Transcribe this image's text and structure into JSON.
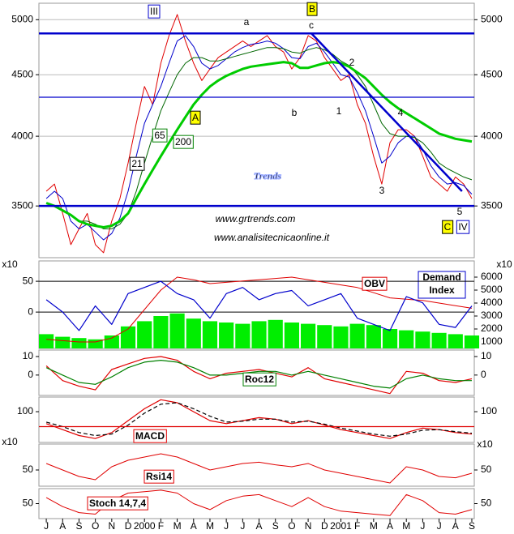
{
  "chart_data": [
    {
      "type": "line",
      "log": true,
      "grid": true,
      "mirror_ticks": true,
      "xlim": [
        -0.45,
        26.15
      ],
      "ylim": [
        3170,
        5160
      ],
      "yticks": [
        3500,
        4000,
        4500,
        5000
      ],
      "hlines": [
        4870,
        4310,
        3500
      ],
      "hline_color": "#0000cc",
      "trendline": {
        "x": [
          16.2,
          25.4
        ],
        "y": [
          4870,
          3600
        ],
        "color": "#0000cc"
      },
      "x": [
        0,
        0.5,
        1,
        1.5,
        2,
        2.5,
        3,
        3.5,
        4,
        4.5,
        5,
        5.5,
        6,
        6.5,
        7,
        7.5,
        8,
        8.5,
        9,
        9.5,
        10,
        10.5,
        11,
        11.5,
        12,
        12.5,
        13,
        13.5,
        14,
        14.5,
        15,
        15.5,
        16,
        16.5,
        17,
        17.5,
        18,
        18.5,
        19,
        19.5,
        20,
        20.5,
        21,
        21.5,
        22,
        22.5,
        23,
        23.5,
        24,
        24.5,
        25,
        25.5,
        26
      ],
      "series": [
        {
          "color": "#e00000",
          "values": [
            3600,
            3650,
            3450,
            3250,
            3350,
            3450,
            3250,
            3200,
            3400,
            3550,
            3800,
            4100,
            4400,
            4250,
            4600,
            4850,
            5050,
            4800,
            4600,
            4450,
            4550,
            4650,
            4700,
            4750,
            4800,
            4750,
            4800,
            4850,
            4750,
            4700,
            4550,
            4650,
            4850,
            4800,
            4650,
            4550,
            4450,
            4500,
            4250,
            4100,
            3850,
            3650,
            3950,
            4050,
            4050,
            4000,
            3850,
            3700,
            3650,
            3600,
            3700,
            3650,
            3550
          ]
        },
        {
          "color": "#0000cc",
          "values": [
            3550,
            3600,
            3550,
            3400,
            3350,
            3380,
            3330,
            3280,
            3320,
            3420,
            3600,
            3850,
            4100,
            4250,
            4400,
            4600,
            4800,
            4850,
            4750,
            4600,
            4550,
            4580,
            4640,
            4700,
            4740,
            4770,
            4780,
            4800,
            4780,
            4730,
            4650,
            4640,
            4750,
            4780,
            4700,
            4600,
            4500,
            4480,
            4350,
            4200,
            4000,
            3800,
            3850,
            3950,
            4000,
            4000,
            3900,
            3780,
            3700,
            3650,
            3660,
            3640,
            3580
          ]
        },
        {
          "color": "#006600",
          "values": [
            null,
            null,
            null,
            null,
            3400,
            3400,
            3380,
            3350,
            3350,
            3380,
            3450,
            3600,
            3800,
            4000,
            4200,
            4350,
            4500,
            4600,
            4650,
            4650,
            4620,
            4620,
            4640,
            4660,
            4680,
            4700,
            4720,
            4740,
            4740,
            4730,
            4700,
            4690,
            4720,
            4740,
            4720,
            4680,
            4620,
            4580,
            4500,
            4400,
            4250,
            4100,
            4020,
            4000,
            4000,
            3990,
            3950,
            3880,
            3800,
            3760,
            3730,
            3700,
            3680
          ]
        },
        {
          "color": "#00cc00",
          "values": [
            3520,
            3500,
            3470,
            3440,
            3400,
            3380,
            3370,
            3360,
            3370,
            3400,
            3450,
            3550,
            3650,
            3750,
            3850,
            3950,
            4050,
            4150,
            4250,
            4330,
            4400,
            4450,
            4490,
            4520,
            4550,
            4570,
            4580,
            4590,
            4600,
            4610,
            4600,
            4560,
            4560,
            4580,
            4600,
            4610,
            4600,
            4570,
            4520,
            4470,
            4400,
            4330,
            4270,
            4220,
            4180,
            4140,
            4100,
            4060,
            4020,
            4000,
            3980,
            3970,
            3960
          ]
        }
      ],
      "annotations": [
        "III",
        "a",
        "B",
        "c",
        "2",
        "A",
        "b",
        "1",
        "4",
        "3",
        "5",
        "C",
        "IV",
        "21",
        "65",
        "200",
        "Trends",
        "www.grtrends.com",
        "www.analisitecnicaonline.it"
      ]
    },
    {
      "type": "line",
      "xlim": [
        -0.45,
        26.15
      ],
      "ylim": [
        -59,
        83
      ],
      "yticks": [
        50,
        0
      ],
      "grid": true,
      "y2lim": [
        500,
        7250
      ],
      "y2ticks": [
        6000,
        5000,
        4000,
        3000,
        2000,
        1000
      ],
      "units": "x10",
      "x": [
        0,
        1,
        2,
        3,
        4,
        5,
        6,
        7,
        8,
        9,
        10,
        11,
        12,
        13,
        14,
        15,
        16,
        17,
        18,
        19,
        20,
        21,
        22,
        23,
        24,
        25,
        26
      ],
      "series": [
        {
          "color": "#00ee00",
          "kind": "bar",
          "axis": "y2",
          "values": [
            1600,
            1400,
            1300,
            1200,
            1500,
            2200,
            2600,
            3000,
            3200,
            2800,
            2600,
            2500,
            2400,
            2600,
            2700,
            2500,
            2400,
            2300,
            2200,
            2400,
            2300,
            2000,
            1900,
            1800,
            1700,
            1600,
            1500
          ]
        },
        {
          "color": "#e00000",
          "axis": "y2",
          "values": [
            1200,
            1100,
            1000,
            1000,
            1300,
            2000,
            3500,
            5000,
            6000,
            5800,
            5500,
            5600,
            5700,
            5800,
            5900,
            6000,
            5800,
            5600,
            5400,
            5200,
            4800,
            4400,
            4300,
            4200,
            4000,
            3800,
            3600
          ]
        },
        {
          "color": "#0000cc",
          "values": [
            20,
            0,
            -30,
            10,
            -20,
            30,
            40,
            50,
            30,
            20,
            -10,
            30,
            40,
            20,
            30,
            35,
            10,
            20,
            30,
            -10,
            -20,
            -30,
            25,
            15,
            -20,
            -25,
            10
          ]
        }
      ],
      "annotations": [
        "OBV",
        "Demand",
        "Index"
      ]
    },
    {
      "type": "line",
      "xlim": [
        -0.45,
        26.15
      ],
      "ylim": [
        -11,
        13.5
      ],
      "yticks": [
        10,
        0
      ],
      "mirror_ticks": true,
      "x": [
        0,
        1,
        2,
        3,
        4,
        5,
        6,
        7,
        8,
        9,
        10,
        11,
        12,
        13,
        14,
        15,
        16,
        17,
        18,
        19,
        20,
        21,
        22,
        23,
        24,
        25,
        26
      ],
      "series": [
        {
          "color": "#e00000",
          "values": [
            5,
            -3,
            -6,
            -8,
            3,
            6,
            9,
            10,
            8,
            2,
            -2,
            1,
            2,
            3,
            1,
            -1,
            4,
            -2,
            -4,
            -6,
            -8,
            -10,
            2,
            1,
            -3,
            -4,
            -2
          ]
        },
        {
          "color": "#008000",
          "values": [
            4,
            0,
            -4,
            -5,
            -1,
            4,
            7,
            8,
            7,
            4,
            0,
            0,
            1,
            2,
            2,
            0,
            2,
            0,
            -2,
            -4,
            -6,
            -7,
            -2,
            0,
            -2,
            -3,
            -3
          ]
        }
      ],
      "annotations": [
        "Roc12"
      ]
    },
    {
      "type": "line",
      "xlim": [
        -0.45,
        26.15
      ],
      "ylim": [
        -3,
        149
      ],
      "yticks": [
        100
      ],
      "mirror_ticks": true,
      "hlines": [
        50
      ],
      "hline_color": "#e00000",
      "x": [
        0,
        1,
        2,
        3,
        4,
        5,
        6,
        7,
        8,
        9,
        10,
        11,
        12,
        13,
        14,
        15,
        16,
        17,
        18,
        19,
        20,
        21,
        22,
        23,
        24,
        25,
        26
      ],
      "series": [
        {
          "color": "#e00000",
          "values": [
            60,
            40,
            20,
            10,
            30,
            70,
            110,
            140,
            130,
            100,
            70,
            60,
            70,
            80,
            75,
            60,
            70,
            55,
            40,
            30,
            20,
            10,
            30,
            45,
            40,
            30,
            25
          ]
        },
        {
          "color": "#000000",
          "dash": true,
          "values": [
            65,
            50,
            30,
            20,
            25,
            55,
            95,
            125,
            130,
            110,
            85,
            65,
            68,
            75,
            75,
            65,
            68,
            58,
            45,
            35,
            25,
            18,
            25,
            38,
            40,
            33,
            28
          ]
        }
      ],
      "annotations": [
        "MACD"
      ]
    },
    {
      "type": "line",
      "xlim": [
        -0.45,
        26.15
      ],
      "ylim": [
        25,
        90
      ],
      "yticks": [
        50
      ],
      "mirror_ticks": true,
      "units": "x10",
      "x": [
        0,
        1,
        2,
        3,
        4,
        5,
        6,
        7,
        8,
        9,
        10,
        11,
        12,
        13,
        14,
        15,
        16,
        17,
        18,
        19,
        20,
        21,
        22,
        23,
        24,
        25,
        26
      ],
      "series": [
        {
          "color": "#e00000",
          "values": [
            60,
            50,
            40,
            35,
            55,
            65,
            70,
            75,
            70,
            60,
            50,
            55,
            60,
            62,
            58,
            55,
            60,
            50,
            45,
            40,
            35,
            30,
            55,
            50,
            40,
            38,
            45
          ]
        }
      ],
      "annotations": [
        "Rsi14"
      ]
    },
    {
      "type": "line",
      "xlim": [
        -0.45,
        26.15
      ],
      "ylim": [
        0,
        100
      ],
      "yticks": [
        50
      ],
      "mirror_ticks": true,
      "x": [
        0,
        1,
        2,
        3,
        4,
        5,
        6,
        7,
        8,
        9,
        10,
        11,
        12,
        13,
        14,
        15,
        16,
        17,
        18,
        19,
        20,
        21,
        22,
        23,
        24,
        25,
        26
      ],
      "series": [
        {
          "color": "#e00000",
          "values": [
            70,
            40,
            20,
            15,
            60,
            85,
            90,
            95,
            85,
            50,
            30,
            60,
            75,
            80,
            60,
            40,
            70,
            40,
            25,
            20,
            15,
            10,
            80,
            60,
            20,
            15,
            30
          ]
        }
      ],
      "xticks": [
        {
          "value": 0,
          "label": "J"
        },
        {
          "value": 1,
          "label": "A"
        },
        {
          "value": 2,
          "label": "S"
        },
        {
          "value": 3,
          "label": "O"
        },
        {
          "value": 4,
          "label": "N"
        },
        {
          "value": 5,
          "label": "D"
        },
        {
          "value": 6,
          "label": "2000"
        },
        {
          "value": 7,
          "label": "F"
        },
        {
          "value": 8,
          "label": "M"
        },
        {
          "value": 9,
          "label": "A"
        },
        {
          "value": 10,
          "label": "M"
        },
        {
          "value": 11,
          "label": "J"
        },
        {
          "value": 12,
          "label": "J"
        },
        {
          "value": 13,
          "label": "A"
        },
        {
          "value": 14,
          "label": "S"
        },
        {
          "value": 15,
          "label": "O"
        },
        {
          "value": 16,
          "label": "N"
        },
        {
          "value": 17,
          "label": "D"
        },
        {
          "value": 18,
          "label": "2001"
        },
        {
          "value": 19,
          "label": "F"
        },
        {
          "value": 20,
          "label": "M"
        },
        {
          "value": 21,
          "label": "A"
        },
        {
          "value": 22,
          "label": "M"
        },
        {
          "value": 23,
          "label": "J"
        },
        {
          "value": 24,
          "label": "J"
        },
        {
          "value": 25,
          "label": "A"
        },
        {
          "value": 26,
          "label": "S"
        }
      ],
      "annotations": [
        "Stoch 14,7,4"
      ]
    }
  ]
}
